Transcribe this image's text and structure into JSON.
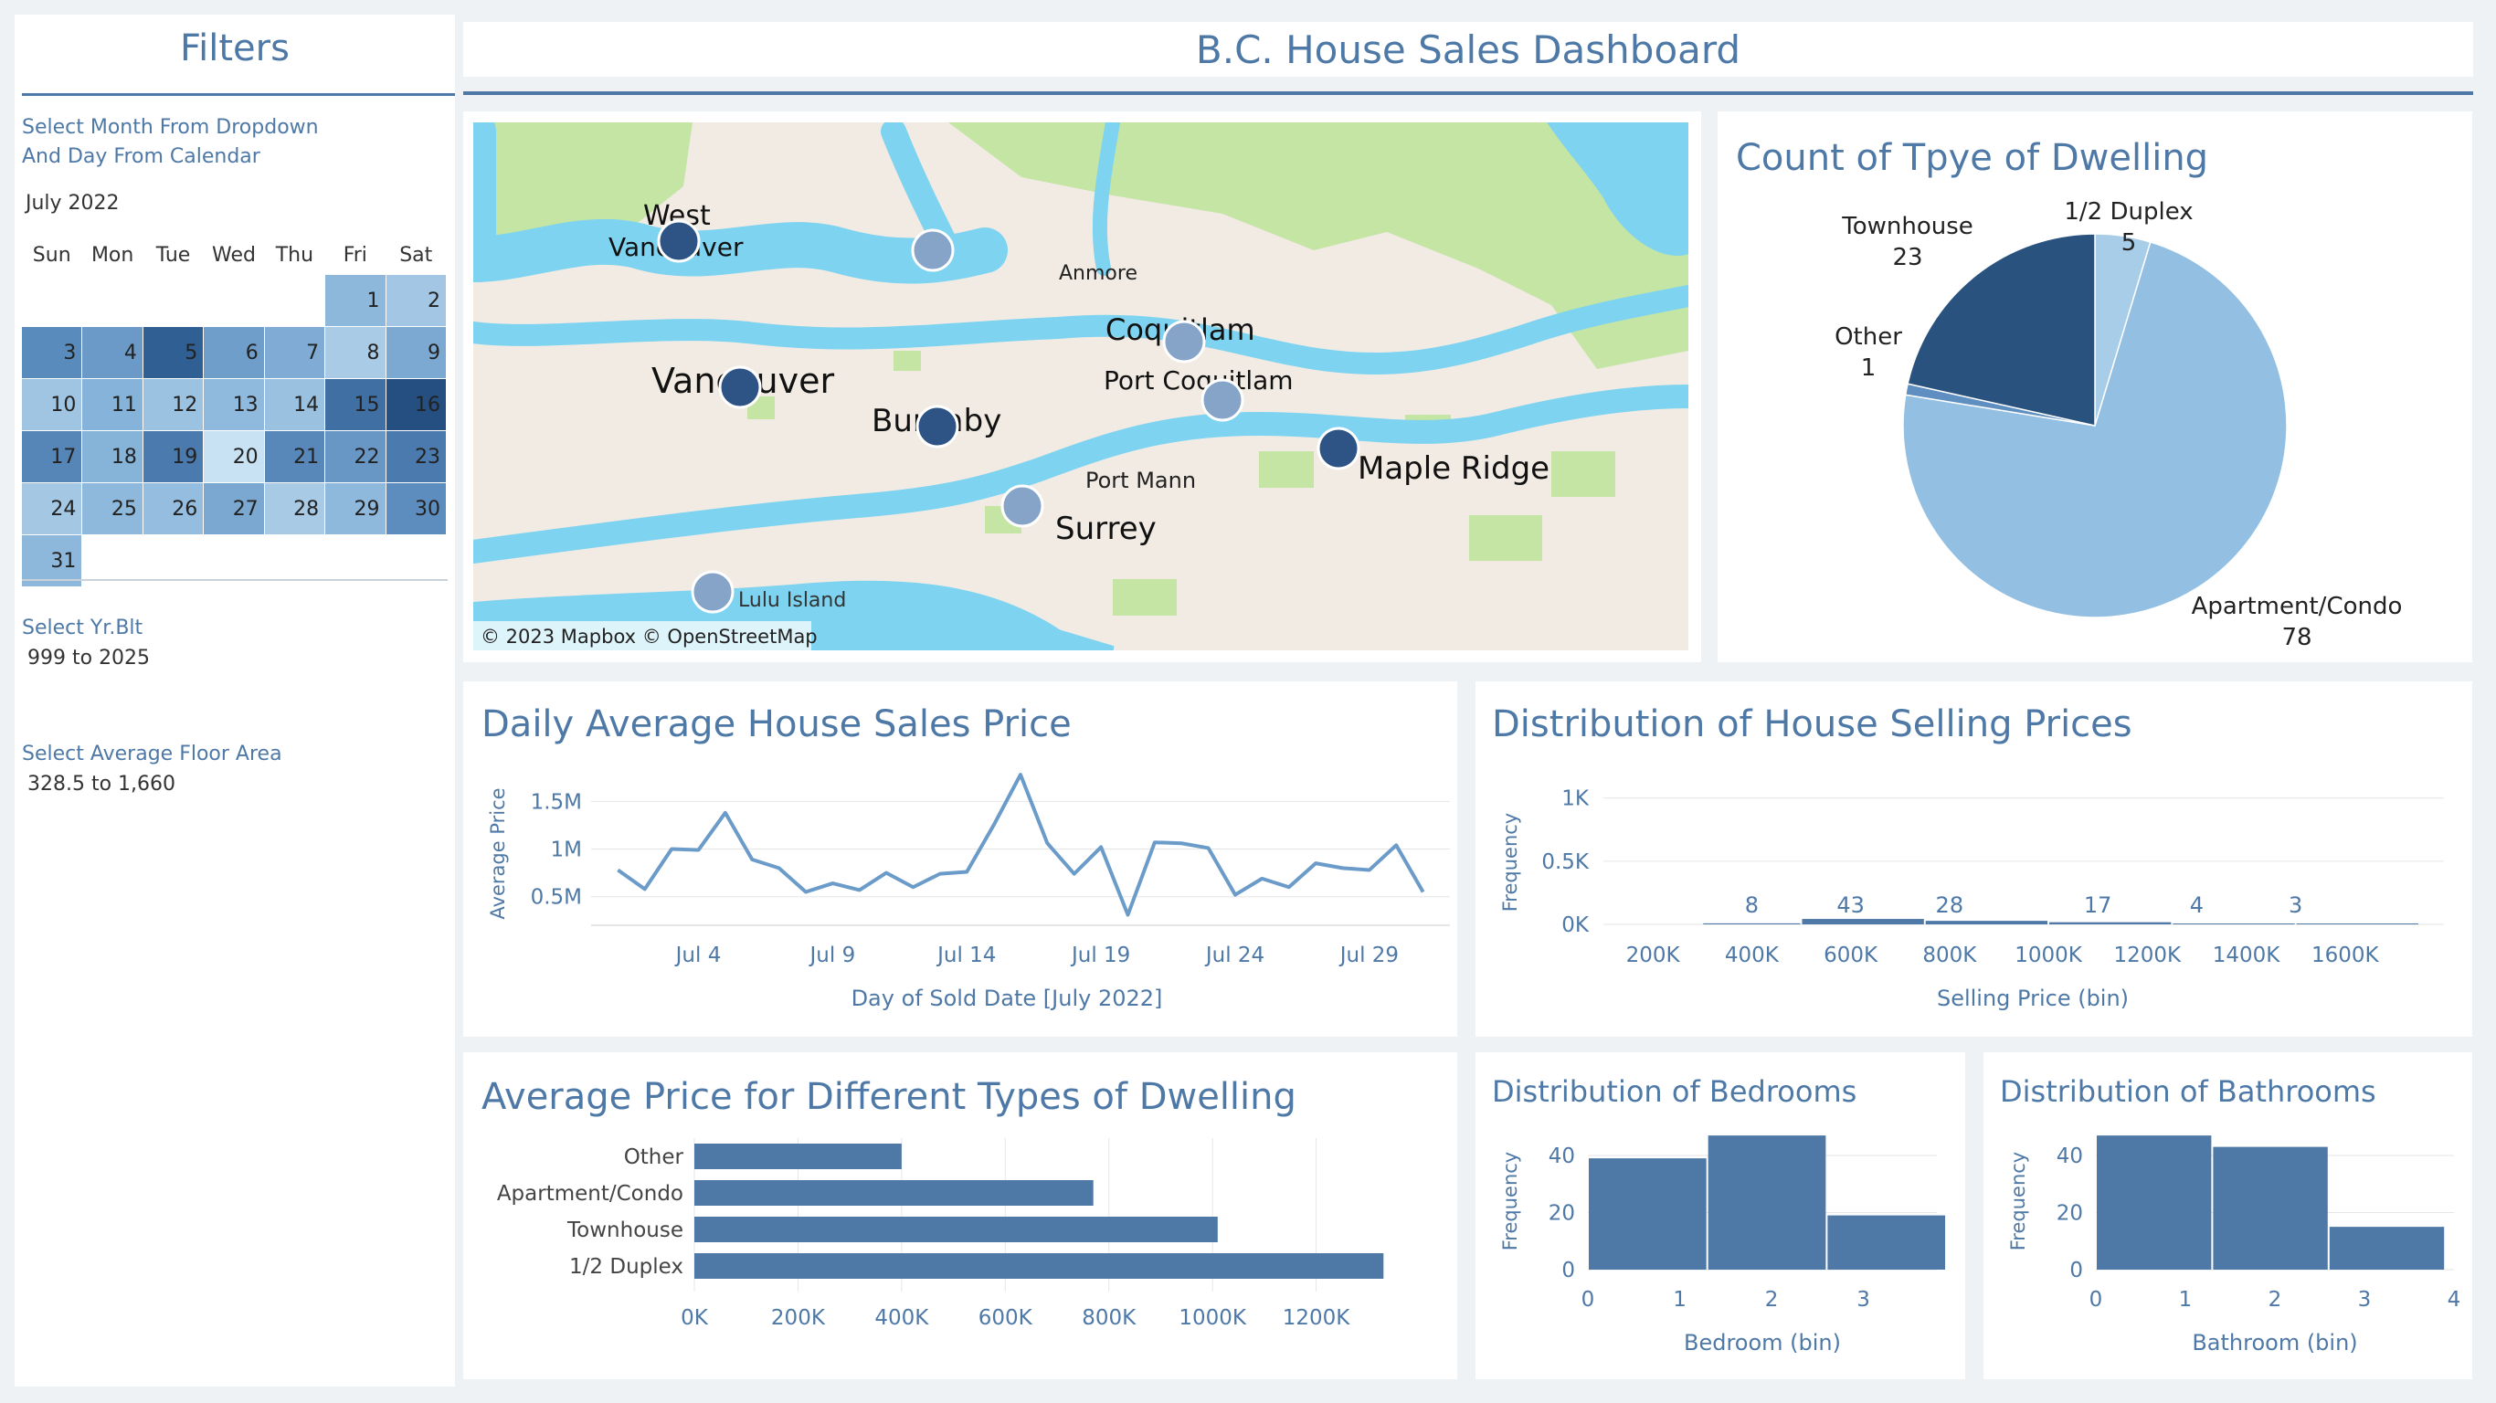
{
  "filters": {
    "title": "Filters",
    "month_label_line1": "Select Month From Dropdown",
    "month_label_line2": "And Day From Calendar",
    "month_value": "July 2022",
    "calendar": {
      "weekdays": [
        "Sun",
        "Mon",
        "Tue",
        "Wed",
        "Thu",
        "Fri",
        "Sat"
      ],
      "weeks": [
        [
          null,
          null,
          null,
          null,
          null,
          1,
          2
        ],
        [
          3,
          4,
          5,
          6,
          7,
          8,
          9
        ],
        [
          10,
          11,
          12,
          13,
          14,
          15,
          16
        ],
        [
          17,
          18,
          19,
          20,
          21,
          22,
          23
        ],
        [
          24,
          25,
          26,
          27,
          28,
          29,
          30
        ],
        [
          31,
          null,
          null,
          null,
          null,
          null,
          null
        ]
      ],
      "day_colors": {
        "1": "#8db8dc",
        "2": "#a2c6e3",
        "3": "#5a8bbd",
        "4": "#6b9ac8",
        "5": "#2f5f93",
        "6": "#6f9ecb",
        "7": "#7fabd4",
        "8": "#a9cbe6",
        "9": "#7ca9d2",
        "10": "#a0c5e2",
        "11": "#86b3d9",
        "12": "#9cc2e1",
        "13": "#90badd",
        "14": "#9ac1e0",
        "15": "#3f6fa3",
        "16": "#244f80",
        "17": "#5686b8",
        "18": "#86b3d8",
        "19": "#4a7aae",
        "20": "#c9e2f3",
        "21": "#5888ba",
        "22": "#6896c5",
        "23": "#4b7bae",
        "24": "#a4c7e3",
        "25": "#8fb9dc",
        "26": "#94bddf",
        "27": "#7ba8d1",
        "28": "#a8cae5",
        "29": "#8fb9dc",
        "30": "#5d8dbf",
        "31": "#8db8dc"
      }
    },
    "yr_label": "Select Yr.Blt",
    "yr_value": "999 to 2025",
    "floor_label": "Select Average Floor Area",
    "floor_value": "328.5 to 1,660"
  },
  "dashboard_title": "B.C. House Sales Dashboard",
  "map": {
    "attribution": "© 2023 Mapbox © OpenStreetMap",
    "places": [
      "West",
      "Vancouver",
      "Vancouver",
      "Anmore",
      "Coquitlam",
      "Port Coquitlam",
      "Burnaby",
      "Port Mann",
      "Maple Ridge",
      "Surrey",
      "Lulu Island"
    ],
    "colors": {
      "water": "#7dd3f0",
      "land": "#f1ebe4",
      "park": "#c5e5a5",
      "marker_light": "#86a3c8",
      "marker_dark": "#2d5485"
    }
  },
  "chart_data": [
    {
      "id": "dwelling_count",
      "type": "pie",
      "title": "Count of Tpye of Dwelling",
      "slices": [
        {
          "label": "1/2 Duplex",
          "value": 5,
          "color": "#a7cde9"
        },
        {
          "label": "Apartment/Condo",
          "value": 78,
          "color": "#93c0e2"
        },
        {
          "label": "Other",
          "value": 1,
          "color": "#5f8fc0"
        },
        {
          "label": "Townhouse",
          "value": 23,
          "color": "#29527f"
        }
      ]
    },
    {
      "id": "daily_avg_price",
      "type": "line",
      "title": "Daily Average House Sales Price",
      "xlabel": "Day of Sold Date [July 2022]",
      "ylabel": "Average Price",
      "x_ticks": [
        "Jul 4",
        "Jul 9",
        "Jul 14",
        "Jul 19",
        "Jul 24",
        "Jul 29"
      ],
      "x_tick_days": [
        4,
        9,
        14,
        19,
        24,
        29
      ],
      "y_ticks": [
        "0.5M",
        "1M",
        "1.5M"
      ],
      "y_tick_values": [
        500000,
        1000000,
        1500000
      ],
      "xlim": [
        0,
        32
      ],
      "ylim": [
        200000,
        1800000
      ],
      "series": [
        {
          "x": [
            1,
            2,
            3,
            4,
            5,
            6,
            7,
            8,
            9,
            10,
            11,
            12,
            13,
            14,
            15,
            16,
            17,
            18,
            19,
            20,
            21,
            22,
            23,
            24,
            25,
            26,
            27,
            28,
            29,
            30,
            31
          ],
          "y": [
            780000,
            580000,
            1000000,
            990000,
            1380000,
            890000,
            800000,
            550000,
            640000,
            570000,
            750000,
            600000,
            740000,
            760000,
            1250000,
            1780000,
            1060000,
            740000,
            1020000,
            310000,
            1070000,
            1060000,
            1010000,
            520000,
            690000,
            600000,
            850000,
            800000,
            780000,
            1040000,
            550000
          ]
        }
      ]
    },
    {
      "id": "price_distribution",
      "type": "bar",
      "title": "Distribution of House Selling Prices",
      "xlabel": "Selling Price (bin)",
      "ylabel": "Frequency",
      "x_ticks": [
        "200K",
        "400K",
        "600K",
        "800K",
        "1000K",
        "1200K",
        "1400K",
        "1600K"
      ],
      "y_ticks": [
        "0K",
        "0.5K",
        "1K"
      ],
      "y_tick_values": [
        0,
        500,
        1000
      ],
      "ylim": [
        0,
        1200
      ],
      "bins": [
        {
          "from": 300000,
          "to": 500000,
          "value": 8
        },
        {
          "from": 500000,
          "to": 750000,
          "value": 43
        },
        {
          "from": 750000,
          "to": 1000000,
          "value": 28
        },
        {
          "from": 1000000,
          "to": 1250000,
          "value": 17
        },
        {
          "from": 1250000,
          "to": 1500000,
          "value": 4
        },
        {
          "from": 1500000,
          "to": 1750000,
          "value": 3
        }
      ],
      "label_positions_k": [
        400,
        600,
        800,
        1100,
        1300,
        1500
      ],
      "xlim_k": [
        100,
        1800
      ]
    },
    {
      "id": "avg_price_by_type",
      "type": "bar",
      "orientation": "horizontal",
      "title": "Average Price for Different Types of Dwelling",
      "categories": [
        "Other",
        "Apartment/Condo",
        "Townhouse",
        "1/2 Duplex"
      ],
      "values": [
        400000,
        770000,
        1010000,
        1330000
      ],
      "x_ticks": [
        "0K",
        "200K",
        "400K",
        "600K",
        "800K",
        "1000K",
        "1200K"
      ],
      "x_tick_values": [
        0,
        200000,
        400000,
        600000,
        800000,
        1000000,
        1200000
      ],
      "xlim": [
        0,
        1400000
      ]
    },
    {
      "id": "bedrooms",
      "type": "bar",
      "title": "Distribution of Bedrooms",
      "xlabel": "Bedroom (bin)",
      "ylabel": "Frequency",
      "x_ticks": [
        "0",
        "1",
        "2",
        "3"
      ],
      "x_tick_values": [
        0,
        1,
        2,
        3
      ],
      "xlim": [
        0,
        3.8
      ],
      "y_ticks": [
        "0",
        "20",
        "40"
      ],
      "y_tick_values": [
        0,
        20,
        40
      ],
      "ylim": [
        0,
        48
      ],
      "bins": [
        {
          "from": 0,
          "to": 1.3,
          "value": 39
        },
        {
          "from": 1.3,
          "to": 2.6,
          "value": 47
        },
        {
          "from": 2.6,
          "to": 3.9,
          "value": 19
        }
      ]
    },
    {
      "id": "bathrooms",
      "type": "bar",
      "title": "Distribution of Bathrooms",
      "xlabel": "Bathroom (bin)",
      "ylabel": "Frequency",
      "x_ticks": [
        "0",
        "1",
        "2",
        "3",
        "4"
      ],
      "x_tick_values": [
        0,
        1,
        2,
        3,
        4
      ],
      "xlim": [
        0,
        4
      ],
      "y_ticks": [
        "0",
        "20",
        "40"
      ],
      "y_tick_values": [
        0,
        20,
        40
      ],
      "ylim": [
        0,
        48
      ],
      "bins": [
        {
          "from": 0,
          "to": 1.3,
          "value": 47
        },
        {
          "from": 1.3,
          "to": 2.6,
          "value": 43
        },
        {
          "from": 2.6,
          "to": 3.9,
          "value": 15
        }
      ]
    }
  ]
}
